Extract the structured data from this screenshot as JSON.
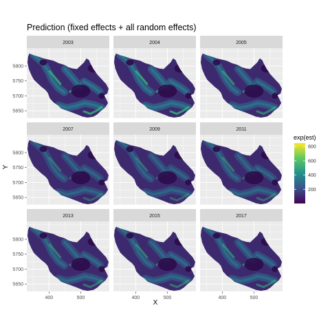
{
  "chart_data": {
    "type": "heatmap",
    "title": "Prediction (fixed effects + all random effects)",
    "xlabel": "X",
    "ylabel": "Y",
    "xlim": [
      330,
      590
    ],
    "ylim": [
      5625,
      5860
    ],
    "x_ticks": [
      400,
      500
    ],
    "y_ticks": [
      5650,
      5700,
      5750,
      5800
    ],
    "facet_layout": {
      "rows": 3,
      "cols": 3
    },
    "panels": [
      {
        "label": "2003",
        "intensity": 1.25
      },
      {
        "label": "2004",
        "intensity": 1.25
      },
      {
        "label": "2005",
        "intensity": 1.1
      },
      {
        "label": "2007",
        "intensity": 0.9
      },
      {
        "label": "2009",
        "intensity": 0.9
      },
      {
        "label": "2011",
        "intensity": 0.95
      },
      {
        "label": "2013",
        "intensity": 1.0
      },
      {
        "label": "2015",
        "intensity": 1.0
      },
      {
        "label": "2017",
        "intensity": 1.05
      }
    ],
    "legend": {
      "title": "exp(est)",
      "position": "right",
      "breaks": [
        200,
        400,
        600,
        800
      ],
      "range": [
        0,
        850
      ],
      "colormap": [
        "#440154",
        "#3b528b",
        "#21918c",
        "#5ec962",
        "#fde725"
      ]
    },
    "grid": true
  }
}
